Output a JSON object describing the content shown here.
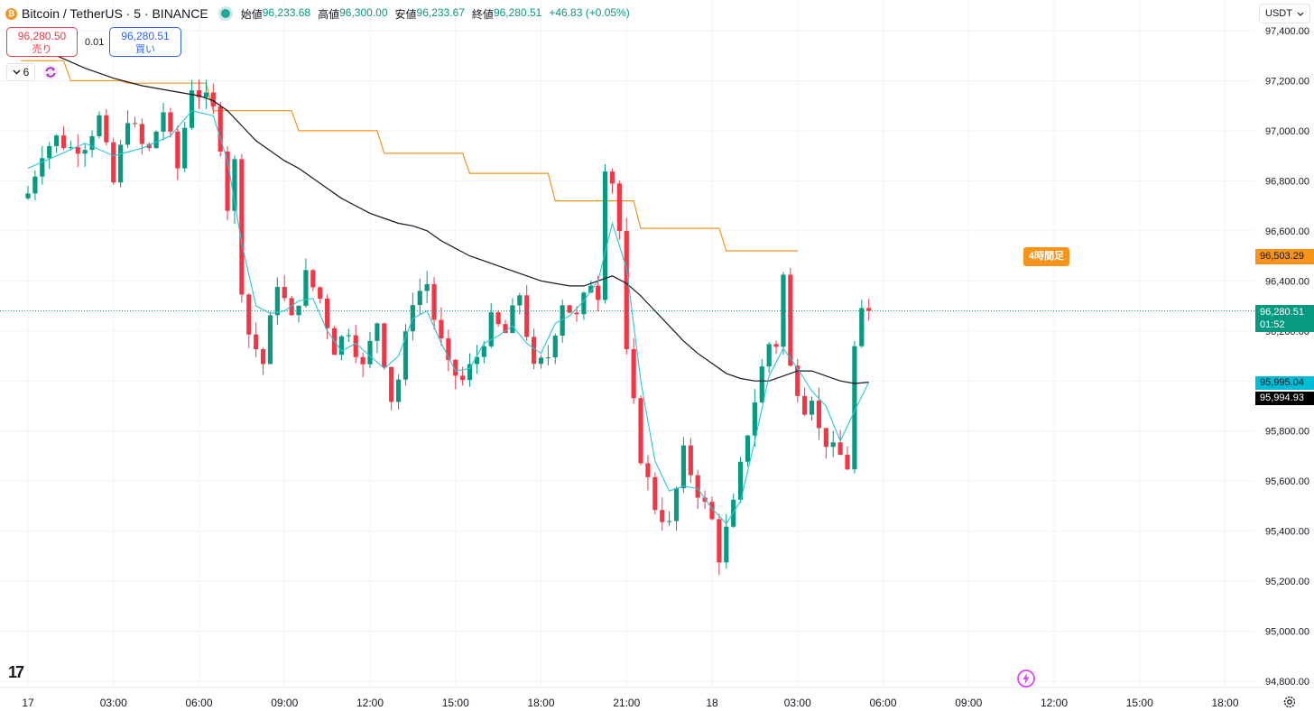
{
  "header": {
    "symbol": "Bitcoin / TetherUS · 5 · BINANCE",
    "coin_glyph": "₿",
    "ohlc": [
      {
        "label": "始値",
        "value": "96,233.68"
      },
      {
        "label": "高値",
        "value": "96,300.00"
      },
      {
        "label": "安値",
        "value": "96,233.67"
      },
      {
        "label": "終値",
        "value": "96,280.51"
      }
    ],
    "change": "+46.83 (+0.05%)"
  },
  "trade": {
    "sell_price": "96,280.50",
    "sell_label": "売り",
    "spread": "0.01",
    "buy_price": "96,280.51",
    "buy_label": "買い"
  },
  "indicators_count": "6",
  "currency": "USDT",
  "price_labels": {
    "last": "96,280.51",
    "countdown": "01:52",
    "line_value": "96,503.29",
    "ma_fast": "95,995.04",
    "ma_slow": "95,994.93",
    "tag_4h": "4時間足"
  },
  "colors": {
    "up": "#089981",
    "down": "#f23645",
    "ma_fast": "#26c6da",
    "ma_slow": "#131722",
    "step_line": "#f7931a"
  },
  "chart_data": {
    "type": "candlestick",
    "title": "",
    "y_ticks": [
      97400,
      97200,
      97000,
      96800,
      96600,
      96400,
      96200,
      96000,
      95800,
      95600,
      95400,
      95200,
      95000,
      94800
    ],
    "ylim": [
      94750,
      97450
    ],
    "x_ticks": [
      "17",
      "03:00",
      "06:00",
      "09:00",
      "12:00",
      "15:00",
      "18:00",
      "21:00",
      "18",
      "03:00",
      "06:00",
      "09:00",
      "12:00",
      "15:00",
      "18:00"
    ],
    "last_price": 96280.51,
    "close_anchors": [
      [
        0,
        96750
      ],
      [
        2,
        96920
      ],
      [
        4,
        96970
      ],
      [
        6,
        96930
      ],
      [
        8,
        96950
      ],
      [
        10,
        97050
      ],
      [
        12,
        96790
      ],
      [
        14,
        97060
      ],
      [
        16,
        96940
      ],
      [
        17,
        96920
      ],
      [
        19,
        97080
      ],
      [
        21,
        96850
      ],
      [
        23,
        97180
      ],
      [
        25,
        97120
      ],
      [
        26,
        97080
      ],
      [
        27,
        96950
      ],
      [
        28,
        96700
      ],
      [
        29,
        96870
      ],
      [
        30,
        96380
      ],
      [
        31,
        96190
      ],
      [
        33,
        96070
      ],
      [
        35,
        96400
      ],
      [
        37,
        96240
      ],
      [
        39,
        96420
      ],
      [
        41,
        96330
      ],
      [
        43,
        96130
      ],
      [
        45,
        96210
      ],
      [
        47,
        96050
      ],
      [
        49,
        96240
      ],
      [
        51,
        95930
      ],
      [
        52,
        96010
      ],
      [
        54,
        96330
      ],
      [
        56,
        96390
      ],
      [
        57,
        96250
      ],
      [
        59,
        96050
      ],
      [
        61,
        96000
      ],
      [
        63,
        96100
      ],
      [
        65,
        96240
      ],
      [
        67,
        96190
      ],
      [
        69,
        96350
      ],
      [
        71,
        96040
      ],
      [
        73,
        96100
      ],
      [
        75,
        96320
      ],
      [
        77,
        96250
      ],
      [
        79,
        96400
      ],
      [
        80,
        96350
      ],
      [
        81,
        96870
      ],
      [
        82,
        96800
      ],
      [
        83,
        96600
      ],
      [
        84,
        96100
      ],
      [
        86,
        95700
      ],
      [
        88,
        95500
      ],
      [
        90,
        95420
      ],
      [
        92,
        95710
      ],
      [
        94,
        95560
      ],
      [
        96,
        95440
      ],
      [
        97,
        95300
      ],
      [
        99,
        95500
      ],
      [
        101,
        95800
      ],
      [
        103,
        96050
      ],
      [
        104,
        96150
      ],
      [
        105,
        96150
      ],
      [
        106,
        96420
      ],
      [
        107,
        96050
      ],
      [
        109,
        95900
      ],
      [
        110,
        95950
      ],
      [
        111,
        95800
      ],
      [
        113,
        95720
      ],
      [
        114,
        95700
      ],
      [
        115,
        95660
      ],
      [
        116,
        96130
      ],
      [
        117,
        96260
      ],
      [
        118,
        96280.51
      ]
    ],
    "ma_fast": [
      [
        0,
        96850
      ],
      [
        4,
        96900
      ],
      [
        8,
        96950
      ],
      [
        12,
        96900
      ],
      [
        16,
        96930
      ],
      [
        20,
        96980
      ],
      [
        23,
        97080
      ],
      [
        26,
        97060
      ],
      [
        28,
        96880
      ],
      [
        30,
        96550
      ],
      [
        32,
        96300
      ],
      [
        34,
        96270
      ],
      [
        36,
        96280
      ],
      [
        38,
        96320
      ],
      [
        40,
        96330
      ],
      [
        42,
        96200
      ],
      [
        44,
        96120
      ],
      [
        46,
        96150
      ],
      [
        48,
        96100
      ],
      [
        50,
        96050
      ],
      [
        52,
        96100
      ],
      [
        54,
        96250
      ],
      [
        56,
        96280
      ],
      [
        58,
        96150
      ],
      [
        60,
        96040
      ],
      [
        62,
        96050
      ],
      [
        64,
        96150
      ],
      [
        66,
        96180
      ],
      [
        68,
        96220
      ],
      [
        70,
        96150
      ],
      [
        72,
        96110
      ],
      [
        74,
        96230
      ],
      [
        76,
        96260
      ],
      [
        78,
        96320
      ],
      [
        80,
        96400
      ],
      [
        82,
        96630
      ],
      [
        84,
        96450
      ],
      [
        86,
        96000
      ],
      [
        88,
        95680
      ],
      [
        90,
        95560
      ],
      [
        92,
        95580
      ],
      [
        94,
        95570
      ],
      [
        96,
        95490
      ],
      [
        98,
        95430
      ],
      [
        100,
        95520
      ],
      [
        102,
        95760
      ],
      [
        104,
        96020
      ],
      [
        106,
        96130
      ],
      [
        108,
        96050
      ],
      [
        110,
        95960
      ],
      [
        112,
        95900
      ],
      [
        114,
        95760
      ],
      [
        116,
        95880
      ],
      [
        118,
        95995.04
      ]
    ],
    "ma_slow": [
      [
        -1,
        97330
      ],
      [
        4,
        97300
      ],
      [
        8,
        97250
      ],
      [
        12,
        97210
      ],
      [
        16,
        97180
      ],
      [
        20,
        97160
      ],
      [
        24,
        97140
      ],
      [
        26,
        97120
      ],
      [
        28,
        97080
      ],
      [
        30,
        97020
      ],
      [
        32,
        96960
      ],
      [
        34,
        96920
      ],
      [
        36,
        96880
      ],
      [
        38,
        96850
      ],
      [
        40,
        96810
      ],
      [
        42,
        96770
      ],
      [
        44,
        96730
      ],
      [
        46,
        96700
      ],
      [
        48,
        96670
      ],
      [
        50,
        96650
      ],
      [
        52,
        96630
      ],
      [
        54,
        96620
      ],
      [
        56,
        96600
      ],
      [
        58,
        96560
      ],
      [
        60,
        96530
      ],
      [
        62,
        96500
      ],
      [
        64,
        96480
      ],
      [
        66,
        96460
      ],
      [
        68,
        96440
      ],
      [
        70,
        96420
      ],
      [
        72,
        96400
      ],
      [
        74,
        96390
      ],
      [
        76,
        96380
      ],
      [
        78,
        96380
      ],
      [
        80,
        96400
      ],
      [
        82,
        96420
      ],
      [
        84,
        96390
      ],
      [
        86,
        96340
      ],
      [
        88,
        96280
      ],
      [
        90,
        96220
      ],
      [
        92,
        96160
      ],
      [
        94,
        96110
      ],
      [
        96,
        96070
      ],
      [
        98,
        96030
      ],
      [
        100,
        96010
      ],
      [
        102,
        96000
      ],
      [
        104,
        96000
      ],
      [
        106,
        96020
      ],
      [
        108,
        96040
      ],
      [
        110,
        96040
      ],
      [
        112,
        96020
      ],
      [
        114,
        96000
      ],
      [
        116,
        95990
      ],
      [
        118,
        95994.93
      ]
    ],
    "step_line": [
      [
        -1,
        97280
      ],
      [
        5,
        97280
      ],
      [
        6,
        97200
      ],
      [
        13,
        97200
      ],
      [
        14,
        97190
      ],
      [
        25,
        97190
      ],
      [
        26,
        97080
      ],
      [
        37,
        97080
      ],
      [
        38,
        97000
      ],
      [
        49,
        97000
      ],
      [
        50,
        96910
      ],
      [
        61,
        96910
      ],
      [
        62,
        96830
      ],
      [
        73,
        96830
      ],
      [
        74,
        96720
      ],
      [
        85,
        96720
      ],
      [
        86,
        96610
      ],
      [
        97,
        96610
      ],
      [
        98,
        96520
      ],
      [
        108,
        96520
      ]
    ]
  }
}
